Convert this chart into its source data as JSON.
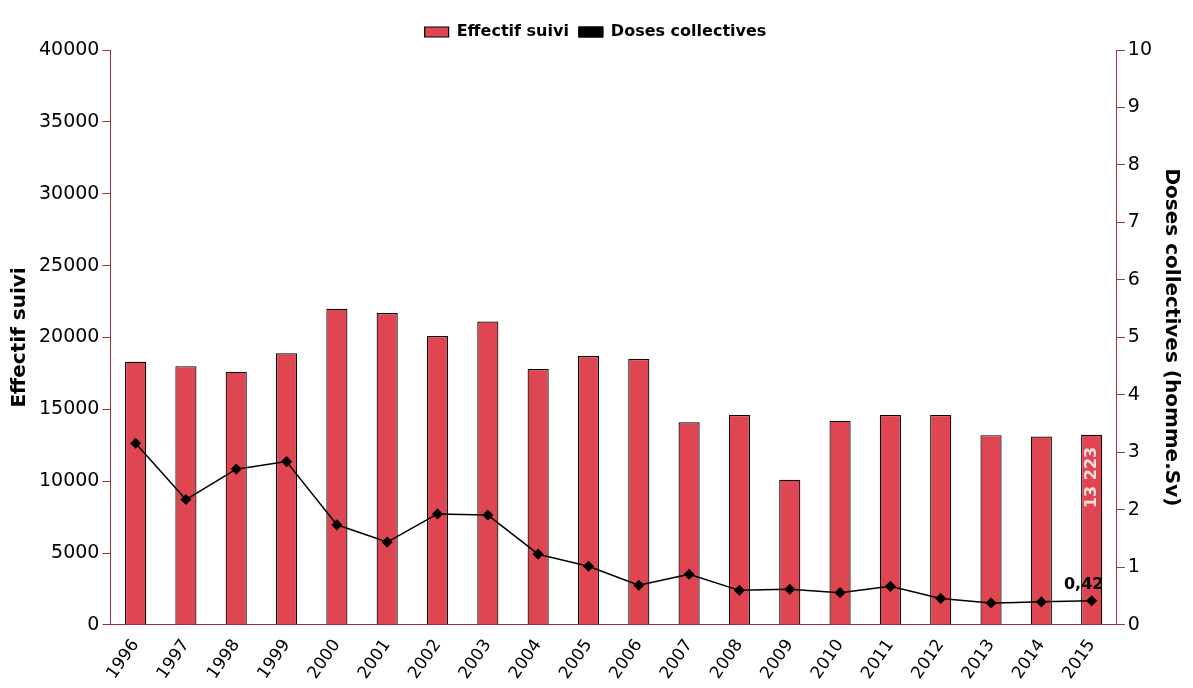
{
  "chart_data": {
    "type": "bar",
    "ylabel": "Effectif suivi",
    "y2label": "Doses collectives (homme.Sv)",
    "categories": [
      "1996",
      "1997",
      "1998",
      "1999",
      "2000",
      "2001",
      "2002",
      "2003",
      "2004",
      "2005",
      "2006",
      "2007",
      "2008",
      "2009",
      "2010",
      "2011",
      "2012",
      "2013",
      "2014",
      "2015"
    ],
    "series": [
      {
        "name": "Effectif suivi",
        "color": "#e04652",
        "values": [
          18300,
          18000,
          17600,
          18900,
          22000,
          21700,
          20100,
          21100,
          17800,
          18700,
          18500,
          14100,
          14600,
          10100,
          14200,
          14600,
          14600,
          13200,
          13100,
          13223
        ],
        "value_labels": [
          null,
          null,
          null,
          null,
          null,
          null,
          null,
          null,
          null,
          null,
          null,
          null,
          null,
          null,
          null,
          null,
          null,
          null,
          null,
          "13 223"
        ]
      },
      {
        "name": "Doses collectives",
        "type": "line",
        "axis": "y2",
        "color": "#000000",
        "marker": "diamond",
        "values": [
          3.16,
          2.18,
          2.71,
          2.84,
          1.74,
          1.44,
          1.93,
          1.91,
          1.23,
          1.02,
          0.69,
          0.88,
          0.6,
          0.62,
          0.56,
          0.67,
          0.46,
          0.38,
          0.4,
          0.42
        ],
        "value_labels": [
          null,
          null,
          null,
          null,
          null,
          null,
          null,
          null,
          null,
          null,
          null,
          null,
          null,
          null,
          null,
          null,
          null,
          null,
          null,
          "0,42"
        ]
      }
    ],
    "ylim": [
      0,
      40000
    ],
    "yticks": [
      0,
      5000,
      10000,
      15000,
      20000,
      25000,
      30000,
      35000,
      40000
    ],
    "y2lim": [
      0,
      10
    ],
    "y2ticks": [
      0,
      1,
      2,
      3,
      4,
      5,
      6,
      7,
      8,
      9,
      10
    ],
    "legend": "top",
    "grid": false
  }
}
